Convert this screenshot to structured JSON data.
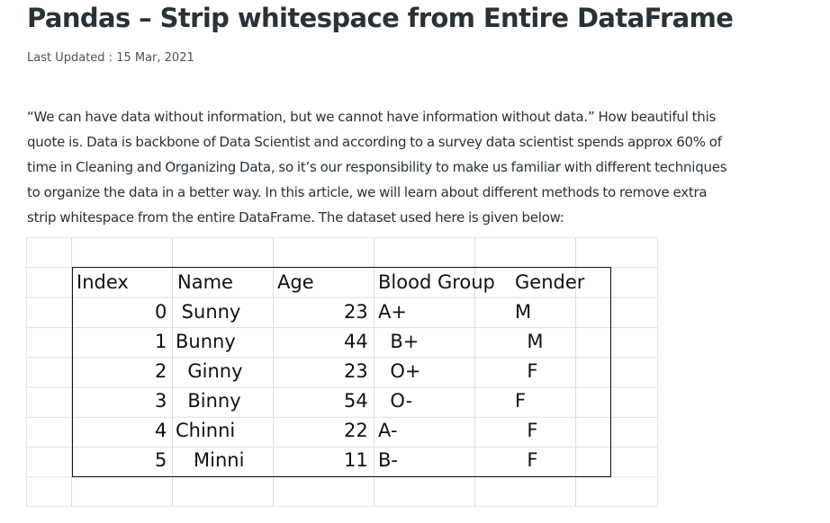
{
  "article": {
    "title": "Pandas – Strip whitespace from Entire DataFrame",
    "last_updated": "Last Updated : 15 Mar, 2021",
    "paragraph_lines": [
      "“We can have data without information, but we cannot have information without data.”  How beautiful this",
      "quote is. Data is backbone of Data Scientist and according to a survey data scientist spends approx 60% of",
      "time in Cleaning and Organizing Data, so it’s our responsibility to make us familiar with different techniques",
      "to organize the data in a better way. In this article, we will learn about different methods to remove extra",
      "strip whitespace from the entire DataFrame. The dataset used here is given below:"
    ]
  },
  "dataset": {
    "headers": [
      "Index",
      "Name",
      "Age",
      "Blood Group",
      "Gender"
    ],
    "rows": [
      [
        "0",
        " Sunny",
        "23",
        "A+",
        "M"
      ],
      [
        "1",
        "Bunny",
        "44",
        "  B+",
        "  M"
      ],
      [
        "2",
        "  Ginny",
        "23",
        "  O+",
        "  F"
      ],
      [
        "3",
        "  Binny",
        "54",
        "  O-",
        "F"
      ],
      [
        "4",
        "Chinni",
        "22",
        "A-",
        "  F"
      ],
      [
        "5",
        "   Minni",
        "11",
        "B-",
        "  F"
      ]
    ]
  }
}
